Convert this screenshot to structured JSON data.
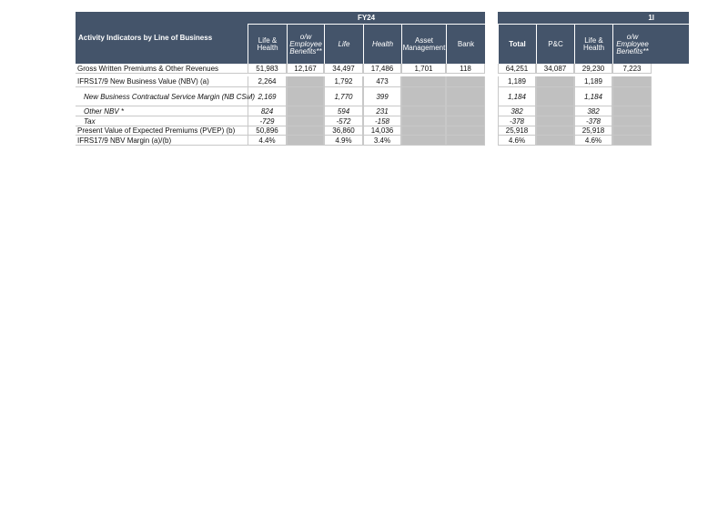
{
  "header": {
    "title": "Activity Indicators by Line of Business",
    "group_left": "FY24",
    "group_right": "1I"
  },
  "columns": [
    "Life & Health",
    "o/w Employee Benefits**",
    "Life",
    "Health",
    "Asset Management",
    "Bank",
    "Total",
    "P&C",
    "Life & Health",
    "o/w Employee Benefits**"
  ],
  "rows": [
    {
      "label": "Gross Written Premiums & Other Revenues",
      "values": [
        "51,983",
        "12,167",
        "34,497",
        "17,486",
        "1,701",
        "118",
        "64,251",
        "34,087",
        "29,230",
        "7,223"
      ]
    },
    {
      "label": "IFRS17/9 New Business Value (NBV) (a)",
      "values": [
        "2,264",
        null,
        "1,792",
        "473",
        null,
        null,
        "1,189",
        null,
        "1,189",
        null
      ]
    },
    {
      "label": "New Business Contractual Service Margin (NB CSM)",
      "values": [
        "2,169",
        null,
        "1,770",
        "399",
        null,
        null,
        "1,184",
        null,
        "1,184",
        null
      ]
    },
    {
      "label": "Other NBV *",
      "values": [
        "824",
        null,
        "594",
        "231",
        null,
        null,
        "382",
        null,
        "382",
        null
      ]
    },
    {
      "label": "Tax",
      "values": [
        "-729",
        null,
        "-572",
        "-158",
        null,
        null,
        "-378",
        null,
        "-378",
        null
      ]
    },
    {
      "label": "Present Value of Expected Premiums (PVEP) (b)",
      "values": [
        "50,896",
        null,
        "36,860",
        "14,036",
        null,
        null,
        "25,918",
        null,
        "25,918",
        null
      ]
    },
    {
      "label": "IFRS17/9 NBV Margin (a)/(b)",
      "values": [
        "4.4%",
        null,
        "4.9%",
        "3.4%",
        null,
        null,
        "4.6%",
        null,
        "4.6%",
        null
      ]
    }
  ]
}
